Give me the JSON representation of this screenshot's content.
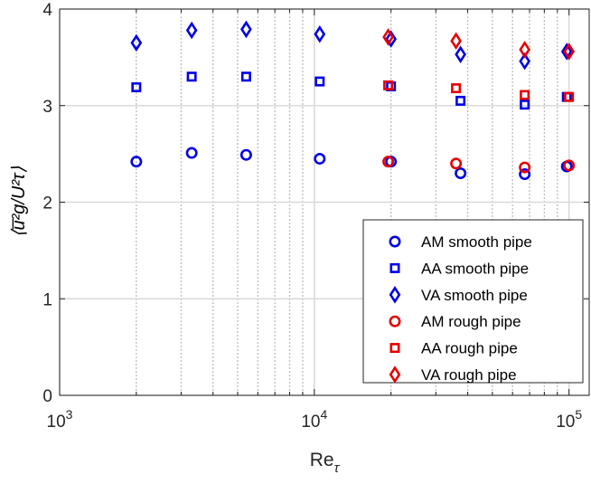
{
  "chart_data": {
    "type": "scatter",
    "title": "",
    "xlabel": "Re",
    "xlabel_sub": "τ",
    "ylabel": "⟨u̅²g/U²τ⟩",
    "xscale": "log",
    "xlim": [
      1000,
      120000
    ],
    "ylim": [
      0,
      4
    ],
    "grid": true,
    "x_ticks": [
      {
        "value": 1000,
        "base": "10",
        "exp": "3"
      },
      {
        "value": 10000,
        "base": "10",
        "exp": "4"
      },
      {
        "value": 100000,
        "base": "10",
        "exp": "5"
      }
    ],
    "y_ticks": [
      {
        "value": 0,
        "label": "0"
      },
      {
        "value": 1,
        "label": "1"
      },
      {
        "value": 2,
        "label": "2"
      },
      {
        "value": 3,
        "label": "3"
      },
      {
        "value": 4,
        "label": "4"
      }
    ],
    "x_grid_minor": [
      2000,
      3000,
      4000,
      5000,
      6000,
      7000,
      8000,
      9000,
      20000,
      30000,
      40000,
      50000,
      60000,
      70000,
      80000,
      90000
    ],
    "legend_position": "bottom-right",
    "series": [
      {
        "name": "AM smooth pipe",
        "marker": "circle",
        "color": "#0000e6",
        "points": [
          [
            2000,
            2.42
          ],
          [
            3300,
            2.51
          ],
          [
            5400,
            2.49
          ],
          [
            10500,
            2.45
          ],
          [
            20000,
            2.42
          ],
          [
            37500,
            2.3
          ],
          [
            67000,
            2.29
          ],
          [
            98000,
            2.37
          ]
        ]
      },
      {
        "name": "AA smooth pipe",
        "marker": "square",
        "color": "#0000e6",
        "points": [
          [
            2000,
            3.19
          ],
          [
            3300,
            3.3
          ],
          [
            5400,
            3.3
          ],
          [
            10500,
            3.25
          ],
          [
            20000,
            3.2
          ],
          [
            37500,
            3.05
          ],
          [
            67000,
            3.01
          ],
          [
            98000,
            3.09
          ]
        ]
      },
      {
        "name": "VA smooth pipe",
        "marker": "diamond",
        "color": "#0000e6",
        "points": [
          [
            2000,
            3.65
          ],
          [
            3300,
            3.78
          ],
          [
            5400,
            3.79
          ],
          [
            10500,
            3.74
          ],
          [
            20000,
            3.69
          ],
          [
            37500,
            3.53
          ],
          [
            67000,
            3.46
          ],
          [
            98000,
            3.56
          ]
        ]
      },
      {
        "name": "AM rough pipe",
        "marker": "circle",
        "color": "#e60000",
        "points": [
          [
            19500,
            2.42
          ],
          [
            36000,
            2.4
          ],
          [
            67000,
            2.36
          ],
          [
            100000,
            2.38
          ]
        ]
      },
      {
        "name": "AA rough pipe",
        "marker": "square",
        "color": "#e60000",
        "points": [
          [
            19500,
            3.21
          ],
          [
            36000,
            3.18
          ],
          [
            67000,
            3.11
          ],
          [
            100000,
            3.09
          ]
        ]
      },
      {
        "name": "VA rough pipe",
        "marker": "diamond",
        "color": "#e60000",
        "points": [
          [
            19500,
            3.71
          ],
          [
            36000,
            3.67
          ],
          [
            67000,
            3.58
          ],
          [
            100000,
            3.56
          ]
        ]
      }
    ]
  }
}
